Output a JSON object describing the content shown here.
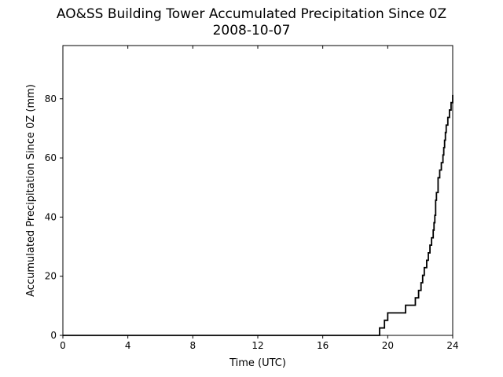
{
  "chart_data": {
    "type": "line",
    "title": "AO&SS Building Tower Accumulated Precipitation Since 0Z",
    "subtitle": "2008-10-07",
    "xlabel": "Time (UTC)",
    "ylabel": "Accumulated Precipitation Since 0Z (mm)",
    "xlim": [
      0,
      24
    ],
    "ylim": [
      0,
      98
    ],
    "xticks": [
      0,
      4,
      8,
      12,
      16,
      20,
      24
    ],
    "yticks": [
      0,
      20,
      40,
      60,
      80
    ],
    "grid": false,
    "line_color": "#000000",
    "step": true,
    "series": [
      {
        "x": [
          0,
          19.5,
          19.8,
          20.0,
          21.1,
          21.7,
          21.9,
          22.05,
          22.15,
          22.25,
          22.4,
          22.5,
          22.6,
          22.7,
          22.8,
          22.85,
          22.9,
          22.95,
          23.0,
          23.1,
          23.2,
          23.3,
          23.4,
          23.45,
          23.5,
          23.55,
          23.6,
          23.7,
          23.8,
          23.9,
          24.0
        ],
        "y": [
          0,
          2.5,
          5.1,
          7.6,
          10.2,
          12.7,
          15.2,
          17.8,
          20.3,
          22.9,
          25.4,
          27.9,
          30.5,
          33.0,
          35.6,
          38.1,
          40.6,
          45.7,
          48.3,
          53.3,
          55.9,
          58.4,
          61.0,
          63.5,
          66.0,
          68.6,
          71.1,
          73.7,
          76.2,
          78.7,
          81.3
        ]
      }
    ]
  }
}
